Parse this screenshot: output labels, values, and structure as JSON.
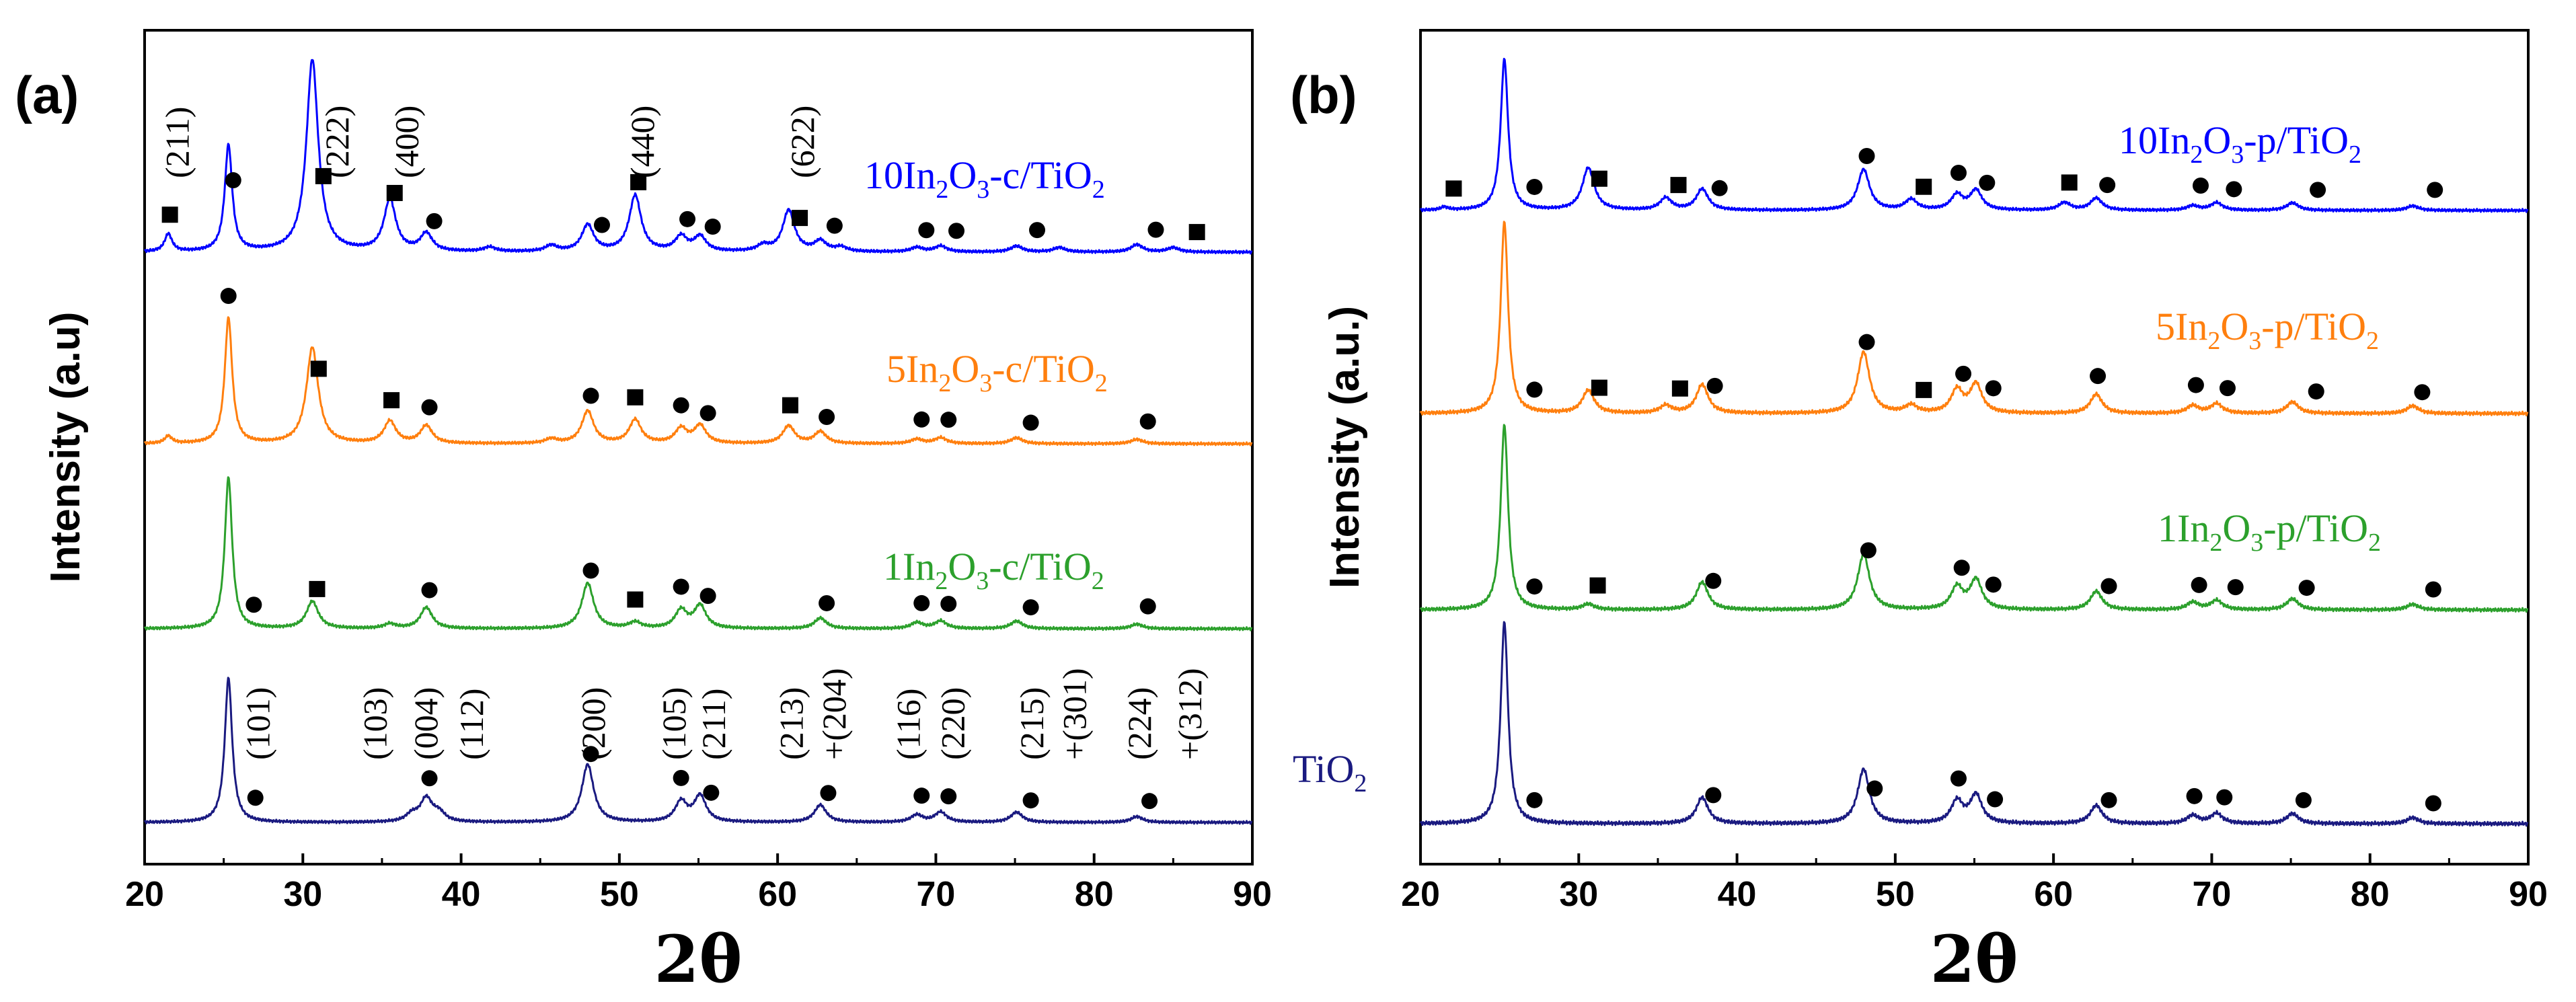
{
  "chart_data": [
    {
      "panel_label": "(a)",
      "type": "line",
      "xlabel": "2θ",
      "ylabel": "Intensity (a.u)",
      "xlim": [
        20,
        90
      ],
      "x_ticks": [
        20,
        30,
        40,
        50,
        60,
        70,
        80,
        90
      ],
      "colors": [
        "#1a1a80",
        "#2ca02c",
        "#ff7f0e",
        "#0000ff"
      ],
      "series": [
        {
          "name": "TiO2",
          "label_main": "",
          "label_a": "",
          "label_b": "",
          "color": "#1a1a80",
          "peaks": [
            [
              25.3,
              1.0
            ],
            [
              36.9,
              0.05
            ],
            [
              37.8,
              0.16
            ],
            [
              38.6,
              0.06
            ],
            [
              48.0,
              0.4
            ],
            [
              53.9,
              0.14
            ],
            [
              55.1,
              0.18
            ],
            [
              62.7,
              0.12
            ],
            [
              68.8,
              0.05
            ],
            [
              70.3,
              0.07
            ],
            [
              75.1,
              0.07
            ],
            [
              82.7,
              0.04
            ]
          ],
          "anatase_markers": [
            27.0,
            38.0,
            48.2,
            53.9,
            55.8,
            63.2,
            69.1,
            70.8,
            76.0,
            83.5
          ],
          "bixbyite_markers": []
        },
        {
          "name": "1In2O3-c/TiO2",
          "label_main": "1In",
          "label_a": "2",
          "label_b": "O",
          "label_sub2": "3",
          "label_rest": "-c/TiO",
          "label_sub3": "2",
          "color": "#2ca02c",
          "peaks": [
            [
              25.3,
              1.0
            ],
            [
              30.6,
              0.18
            ],
            [
              35.5,
              0.03
            ],
            [
              37.8,
              0.14
            ],
            [
              48.0,
              0.3
            ],
            [
              51.0,
              0.04
            ],
            [
              53.9,
              0.12
            ],
            [
              55.1,
              0.15
            ],
            [
              62.7,
              0.07
            ],
            [
              68.8,
              0.04
            ],
            [
              70.3,
              0.05
            ],
            [
              75.1,
              0.05
            ],
            [
              82.7,
              0.03
            ]
          ],
          "anatase_markers": [
            26.9,
            38.0,
            48.2,
            53.9,
            55.6,
            63.1,
            69.1,
            70.8,
            76.0,
            83.4
          ],
          "bixbyite_markers": [
            30.9,
            51.0
          ]
        },
        {
          "name": "5In2O3-c/TiO2",
          "label_main": "5In",
          "label_a": "2",
          "label_b": "O",
          "label_sub2": "3",
          "label_rest": "-c/TiO",
          "label_sub3": "2",
          "color": "#ff7f0e",
          "peaks": [
            [
              21.5,
              0.05
            ],
            [
              25.3,
              0.85
            ],
            [
              30.6,
              0.65
            ],
            [
              35.5,
              0.15
            ],
            [
              37.8,
              0.12
            ],
            [
              45.7,
              0.03
            ],
            [
              48.0,
              0.22
            ],
            [
              51.0,
              0.16
            ],
            [
              53.9,
              0.1
            ],
            [
              55.1,
              0.12
            ],
            [
              60.7,
              0.12
            ],
            [
              62.7,
              0.08
            ],
            [
              68.8,
              0.03
            ],
            [
              70.3,
              0.04
            ],
            [
              75.1,
              0.04
            ],
            [
              82.7,
              0.03
            ]
          ],
          "anatase_markers": [
            25.3,
            38.0,
            48.2,
            53.9,
            55.6,
            63.1,
            69.1,
            70.8,
            76.0,
            83.4
          ],
          "bixbyite_markers": [
            31.0,
            35.6,
            51.0,
            60.8
          ]
        },
        {
          "name": "10In2O3-c/TiO2",
          "label_main": "10In",
          "label_a": "2",
          "label_b": "O",
          "label_sub2": "3",
          "label_rest": "-c/TiO",
          "label_sub3": "2",
          "color": "#0000ff",
          "peaks": [
            [
              21.5,
              0.12
            ],
            [
              25.3,
              0.72
            ],
            [
              30.6,
              1.3
            ],
            [
              35.5,
              0.35
            ],
            [
              37.8,
              0.12
            ],
            [
              41.8,
              0.03
            ],
            [
              45.7,
              0.04
            ],
            [
              48.0,
              0.18
            ],
            [
              51.0,
              0.38
            ],
            [
              53.9,
              0.1
            ],
            [
              55.1,
              0.1
            ],
            [
              59.1,
              0.04
            ],
            [
              60.7,
              0.28
            ],
            [
              62.7,
              0.07
            ],
            [
              64.0,
              0.03
            ],
            [
              68.8,
              0.03
            ],
            [
              70.3,
              0.04
            ],
            [
              75.1,
              0.04
            ],
            [
              77.8,
              0.03
            ],
            [
              82.7,
              0.05
            ],
            [
              85.0,
              0.03
            ]
          ],
          "anatase_markers": [
            25.6,
            38.3,
            48.9,
            54.3,
            55.9,
            63.6,
            69.4,
            71.3,
            76.4,
            83.9
          ],
          "bixbyite_markers": [
            21.6,
            31.3,
            35.8,
            51.2,
            61.4,
            86.5
          ]
        }
      ],
      "annotations_inverted": [
        {
          "text": "(211)",
          "x": 22.1
        },
        {
          "text": "(222)",
          "x": 32.2
        },
        {
          "text": "(400)",
          "x": 36.6
        },
        {
          "text": "(440)",
          "x": 51.5
        },
        {
          "text": "(622)",
          "x": 61.6
        }
      ],
      "annotations_anatase": [
        {
          "text": "(101)",
          "x": 27.2
        },
        {
          "text": "(103)",
          "x": 34.6
        },
        {
          "text": "(004)",
          "x": 37.8
        },
        {
          "text": "(112)",
          "x": 40.7
        },
        {
          "text": "(200)",
          "x": 48.4
        },
        {
          "text": "(105)",
          "x": 53.5
        },
        {
          "text": "(211)",
          "x": 56.0
        },
        {
          "text": "(213)",
          "x": 60.9
        },
        {
          "text": "+(204)",
          "x": 63.6
        },
        {
          "text": "(116)",
          "x": 68.3
        },
        {
          "text": "(220)",
          "x": 71.1
        },
        {
          "text": "(215)",
          "x": 76.1
        },
        {
          "text": "+(301)",
          "x": 78.8
        },
        {
          "text": "(224)",
          "x": 82.9
        },
        {
          "text": "+(312)",
          "x": 86.1
        }
      ]
    },
    {
      "panel_label": "(b)",
      "type": "line",
      "xlabel": "2θ",
      "ylabel": "Intensity (a.u.)",
      "xlim": [
        20,
        90
      ],
      "x_ticks": [
        20,
        30,
        40,
        50,
        60,
        70,
        80,
        90
      ],
      "series": [
        {
          "name": "TiO2",
          "label_main": "TiO",
          "label_a": "2",
          "label_b": "",
          "label_sub2": "",
          "label_rest": "",
          "label_sub3": "",
          "color": "#1a1a80",
          "peaks": [
            [
              25.3,
              1.0
            ],
            [
              37.8,
              0.13
            ],
            [
              48.0,
              0.27
            ],
            [
              53.9,
              0.11
            ],
            [
              55.1,
              0.14
            ],
            [
              62.7,
              0.09
            ],
            [
              68.8,
              0.04
            ],
            [
              70.3,
              0.05
            ],
            [
              75.1,
              0.05
            ],
            [
              82.7,
              0.03
            ]
          ],
          "anatase_markers": [
            27.2,
            38.5,
            48.7,
            54.0,
            56.3,
            63.5,
            68.9,
            70.8,
            75.8,
            84.0
          ],
          "bixbyite_markers": []
        },
        {
          "name": "1In2O3-p/TiO2",
          "label_main": "1In",
          "label_a": "2",
          "label_b": "O",
          "label_sub2": "3",
          "label_rest": "-p/TiO",
          "label_sub3": "2",
          "color": "#2ca02c",
          "peaks": [
            [
              25.3,
              1.0
            ],
            [
              30.6,
              0.03
            ],
            [
              37.8,
              0.15
            ],
            [
              48.0,
              0.3
            ],
            [
              53.9,
              0.12
            ],
            [
              55.1,
              0.16
            ],
            [
              62.7,
              0.1
            ],
            [
              68.8,
              0.04
            ],
            [
              70.3,
              0.05
            ],
            [
              75.1,
              0.06
            ],
            [
              82.7,
              0.03
            ]
          ],
          "anatase_markers": [
            27.2,
            38.5,
            48.3,
            54.2,
            56.2,
            63.5,
            69.2,
            71.5,
            76.0,
            84.0
          ],
          "bixbyite_markers": [
            31.2
          ]
        },
        {
          "name": "5In2O3-p/TiO2",
          "label_main": "5In",
          "label_a": "2",
          "label_b": "O",
          "label_sub2": "3",
          "label_rest": "-p/TiO",
          "label_sub3": "2",
          "color": "#ff7f0e",
          "peaks": [
            [
              25.3,
              1.0
            ],
            [
              30.6,
              0.12
            ],
            [
              35.5,
              0.04
            ],
            [
              37.8,
              0.15
            ],
            [
              48.0,
              0.32
            ],
            [
              51.0,
              0.04
            ],
            [
              53.9,
              0.12
            ],
            [
              55.1,
              0.15
            ],
            [
              62.7,
              0.1
            ],
            [
              68.8,
              0.04
            ],
            [
              70.3,
              0.05
            ],
            [
              75.1,
              0.06
            ],
            [
              82.7,
              0.04
            ]
          ],
          "anatase_markers": [
            27.2,
            38.6,
            48.2,
            54.3,
            56.2,
            62.8,
            69.0,
            71.0,
            76.6,
            83.3
          ],
          "bixbyite_markers": [
            31.3,
            36.4,
            51.8
          ]
        },
        {
          "name": "10In2O3-p/TiO2",
          "label_main": "10In",
          "label_a": "2",
          "label_b": "O",
          "label_sub2": "3",
          "label_rest": "-p/TiO",
          "label_sub3": "2",
          "color": "#0000ff",
          "peaks": [
            [
              21.5,
              0.02
            ],
            [
              25.3,
              1.0
            ],
            [
              30.6,
              0.28
            ],
            [
              35.5,
              0.08
            ],
            [
              37.8,
              0.14
            ],
            [
              48.0,
              0.27
            ],
            [
              51.0,
              0.07
            ],
            [
              53.9,
              0.1
            ],
            [
              55.1,
              0.13
            ],
            [
              60.7,
              0.05
            ],
            [
              62.7,
              0.08
            ],
            [
              68.8,
              0.03
            ],
            [
              70.3,
              0.05
            ],
            [
              75.1,
              0.05
            ],
            [
              82.7,
              0.03
            ]
          ],
          "anatase_markers": [
            27.2,
            38.9,
            48.2,
            54.0,
            55.8,
            63.4,
            69.3,
            71.4,
            76.7,
            84.1
          ],
          "bixbyite_markers": [
            22.1,
            31.3,
            36.3,
            51.8,
            61.0
          ]
        }
      ]
    }
  ]
}
